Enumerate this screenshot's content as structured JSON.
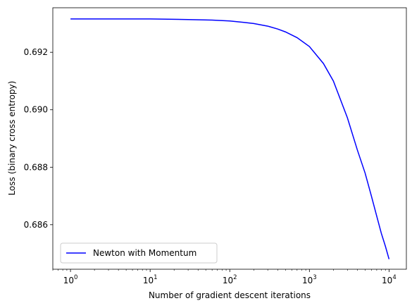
{
  "chart_data": {
    "type": "line",
    "title": "",
    "xlabel": "Number of gradient descent iterations",
    "ylabel": "Loss (binary cross entropy)",
    "xscale": "log",
    "xlim": [
      0.6,
      16500
    ],
    "ylim": [
      0.68445,
      0.69355
    ],
    "x_ticks": [
      1,
      10,
      100,
      1000,
      10000
    ],
    "x_tick_labels": [
      {
        "base": "10",
        "exp": "0"
      },
      {
        "base": "10",
        "exp": "1"
      },
      {
        "base": "10",
        "exp": "2"
      },
      {
        "base": "10",
        "exp": "3"
      },
      {
        "base": "10",
        "exp": "4"
      }
    ],
    "y_ticks": [
      0.686,
      0.688,
      0.69,
      0.692
    ],
    "y_tick_labels": [
      "0.686",
      "0.688",
      "0.690",
      "0.692"
    ],
    "grid": false,
    "legend": {
      "placement": "lower-left"
    },
    "series": [
      {
        "name": "Newton with Momentum",
        "color": "#0000ff",
        "x": [
          1,
          10,
          30,
          60,
          100,
          150,
          200,
          300,
          400,
          500,
          700,
          1000,
          1500,
          2000,
          3000,
          4000,
          5000,
          6000,
          7000,
          8000,
          9000,
          10000
        ],
        "y": [
          0.69316,
          0.69316,
          0.69314,
          0.69312,
          0.69309,
          0.69304,
          0.693,
          0.69291,
          0.69281,
          0.69271,
          0.69251,
          0.6922,
          0.69161,
          0.691,
          0.68972,
          0.6886,
          0.6878,
          0.687,
          0.6863,
          0.6857,
          0.68525,
          0.6848
        ]
      }
    ]
  }
}
